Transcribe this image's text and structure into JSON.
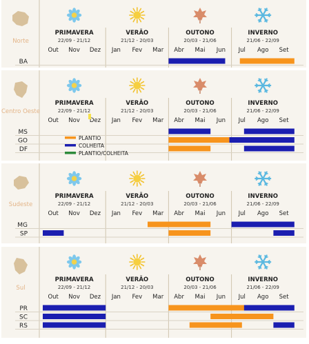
{
  "chart_data": {
    "type": "gantt",
    "months": [
      "Out",
      "Nov",
      "Dez",
      "Jan",
      "Fev",
      "Mar",
      "Abr",
      "Mai",
      "Jun",
      "Jul",
      "Ago",
      "Set"
    ],
    "seasons": [
      {
        "name": "Primavera",
        "dates": "22/09 - 21/12",
        "icon": "flower-icon"
      },
      {
        "name": "Verão",
        "dates": "21/12 - 20/03",
        "icon": "sun-icon"
      },
      {
        "name": "Outono",
        "dates": "20/03 - 21/06",
        "icon": "maple-leaf-icon"
      },
      {
        "name": "Inverno",
        "dates": "21/06 - 22/09",
        "icon": "snowflake-icon"
      }
    ],
    "legend": [
      {
        "label": "Plantio",
        "color": "#f7941d"
      },
      {
        "label": "Colheita",
        "color": "#1b1eb0"
      },
      {
        "label": "Plantio/Colheita",
        "color": "#2e8b3c"
      }
    ],
    "colors": {
      "plantio": "#f7941d",
      "colheita": "#1b1eb0",
      "plantio_colheita": "#2e8b3c",
      "region": "#e3b487"
    },
    "regions": [
      {
        "name": "Norte",
        "states": [
          {
            "code": "BA",
            "plantio": [
              [
                9.4,
                12.0
              ]
            ],
            "colheita": [
              [
                6.0,
                8.7
              ]
            ]
          }
        ]
      },
      {
        "name": "Centro Oeste",
        "states": [
          {
            "code": "MS",
            "plantio": [],
            "colheita": [
              [
                6.0,
                8.0
              ],
              [
                9.6,
                12.0
              ]
            ]
          },
          {
            "code": "GO",
            "plantio": [
              [
                6.0,
                8.9
              ]
            ],
            "colheita": [
              [
                8.9,
                12.0
              ]
            ]
          },
          {
            "code": "DF",
            "plantio": [
              [
                6.0,
                8.0
              ]
            ],
            "colheita": [
              [
                9.6,
                12.0
              ]
            ]
          }
        ]
      },
      {
        "name": "Sudeste",
        "states": [
          {
            "code": "MG",
            "plantio": [
              [
                5.0,
                8.0
              ]
            ],
            "colheita": [
              [
                9.0,
                12.0
              ]
            ]
          },
          {
            "code": "SP",
            "plantio": [
              [
                6.0,
                8.0
              ]
            ],
            "colheita": [
              [
                0.0,
                1.0
              ],
              [
                11.0,
                12.0
              ]
            ]
          }
        ]
      },
      {
        "name": "Sul",
        "states": [
          {
            "code": "PR",
            "plantio": [
              [
                6.0,
                10.0
              ]
            ],
            "colheita": [
              [
                0.0,
                3.0
              ],
              [
                9.6,
                12.0
              ]
            ]
          },
          {
            "code": "SC",
            "plantio": [
              [
                8.0,
                11.0
              ]
            ],
            "colheita": [
              [
                0.0,
                3.0
              ]
            ]
          },
          {
            "code": "RS",
            "plantio": [
              [
                7.0,
                9.5
              ]
            ],
            "colheita": [
              [
                0.0,
                3.0
              ],
              [
                11.0,
                12.0
              ]
            ]
          }
        ]
      }
    ]
  }
}
